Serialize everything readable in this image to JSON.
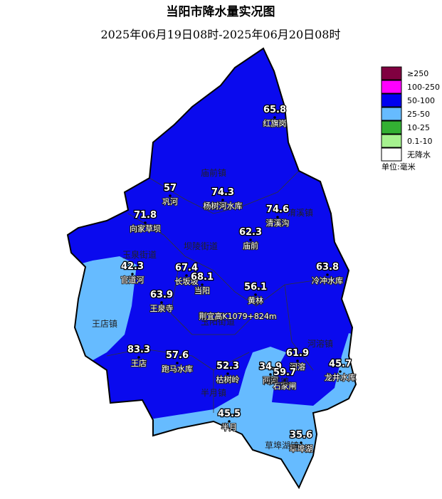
{
  "title": "当阳市降水量实况图",
  "subtitle": "2025年06月19日08时-2025年06月20日08时",
  "legend": {
    "items": [
      {
        "label": "≥250",
        "color": "#800040"
      },
      {
        "label": "100-250",
        "color": "#ff00ff"
      },
      {
        "label": "50-100",
        "color": "#0000f0"
      },
      {
        "label": "25-50",
        "color": "#66bbff"
      },
      {
        "label": "10-25",
        "color": "#33b033"
      },
      {
        "label": "0.1-10",
        "color": "#a6f28f"
      },
      {
        "label": "无降水",
        "color": "#ffffff"
      }
    ],
    "unit": "单位:毫米"
  },
  "stations": [
    {
      "value": "65.8",
      "name": "红旗岗"
    },
    {
      "value": "57",
      "name": "巩河"
    },
    {
      "value": "74.3",
      "name": "杨树河水库"
    },
    {
      "value": "71.8",
      "name": "向家草坝"
    },
    {
      "value": "74.6",
      "name": "清溪沟"
    },
    {
      "value": "62.3",
      "name": "庙前"
    },
    {
      "value": "42.3",
      "name": "官道河"
    },
    {
      "value": "67.4",
      "name": "长坂坡"
    },
    {
      "value": "68.1",
      "name": "当阳"
    },
    {
      "value": "63.9",
      "name": "王泉寺"
    },
    {
      "value": "56.1",
      "name": "黄林"
    },
    {
      "value": "63.8",
      "name": "冷冲水库"
    },
    {
      "value": "83.3",
      "name": "王店"
    },
    {
      "value": "57.6",
      "name": "跑马水库"
    },
    {
      "value": "52.3",
      "name": "枯树岭"
    },
    {
      "value": "61.9",
      "name": "河溶"
    },
    {
      "value": "34.9",
      "name": "两河"
    },
    {
      "value": "59.7",
      "name": "石家闸"
    },
    {
      "value": "45.7",
      "name": "龙井水库"
    },
    {
      "value": "45.5",
      "name": "半月"
    },
    {
      "value": "35.6",
      "name": "草埠湖"
    }
  ],
  "towns": [
    "庙前镇",
    "淯溪镇",
    "玉泉街道",
    "坝陵街道",
    "王店镇",
    "玉阳街道",
    "河溶镇",
    "两河镇",
    "半月镇",
    "草埠湖镇"
  ],
  "special_label": "荆宜高K1079+824m"
}
